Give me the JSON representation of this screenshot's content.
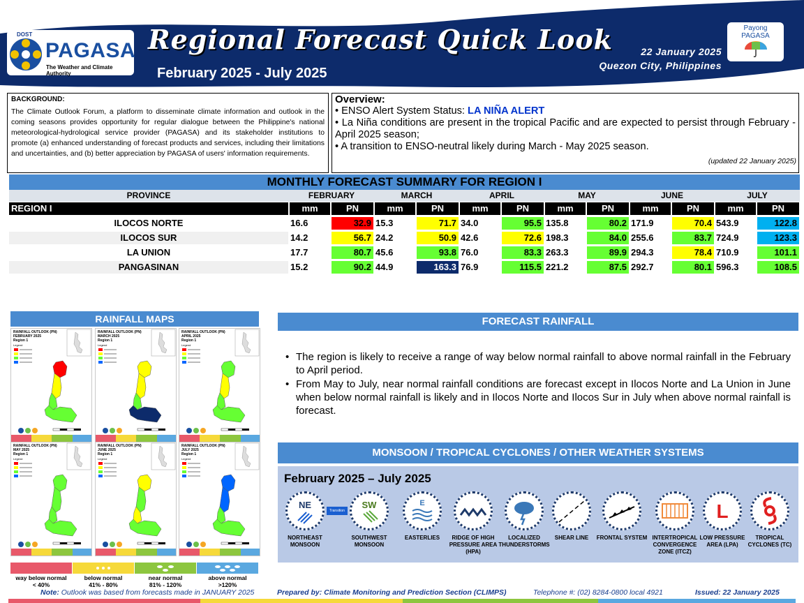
{
  "header": {
    "agency_short": "DOST",
    "agency_name": "PAGASA",
    "agency_tagline": "The Weather and Climate Authority",
    "title": "Regional Forecast Quick Look",
    "period": "February 2025 - July 2025",
    "date": "22 January 2025",
    "place": "Quezon City, Philippines",
    "partner_line1": "Payong",
    "partner_line2": "PAGASA"
  },
  "background": {
    "heading": "BACKGROUND:",
    "text": "The Climate Outlook Forum, a platform to disseminate climate information and outlook in the coming seasons provides opportunity for regular dialogue between the Philippine's national meteorological-hydrological service provider (PAGASA) and its stakeholder institutions to promote (a) enhanced understanding of forecast products and services, including their limitations and uncertainties, and (b) better appreciation by PAGASA of users' information requirements."
  },
  "overview": {
    "heading": "Overview:",
    "status_label": "ENSO Alert System Status:",
    "status_value": "LA NIÑA ALERT",
    "bullet2": "La Niña conditions are present in the tropical Pacific and are expected to persist through February - April 2025 season;",
    "bullet3": "A transition to ENSO-neutral likely during March - May 2025 season.",
    "updated": "(updated 22 January 2025)"
  },
  "summary": {
    "title": "MONTHLY FORECAST SUMMARY FOR REGION I",
    "province_header": "PROVINCE",
    "region_label": "REGION I",
    "mm_label": "mm",
    "pn_label": "PN",
    "months": [
      "FEBRUARY",
      "MARCH",
      "APRIL",
      "MAY",
      "JUNE",
      "JULY"
    ],
    "colors": {
      "way_below": "#ff0000",
      "below": "#ffff00",
      "near": "#66ff33",
      "above": "#00b0f0",
      "way_above": "#0d2b6b"
    },
    "rows": [
      {
        "province": "ILOCOS NORTE",
        "mm": [
          "16.6",
          "15.3",
          "34.0",
          "135.8",
          "171.9",
          "543.9"
        ],
        "pn": [
          "32.9",
          "71.7",
          "95.5",
          "80.2",
          "70.4",
          "122.8"
        ],
        "cat": [
          "way_below",
          "below",
          "near",
          "near",
          "below",
          "above"
        ]
      },
      {
        "province": "ILOCOS SUR",
        "mm": [
          "14.2",
          "24.2",
          "42.6",
          "198.3",
          "255.6",
          "724.9"
        ],
        "pn": [
          "56.7",
          "50.9",
          "72.6",
          "84.0",
          "83.7",
          "123.3"
        ],
        "cat": [
          "below",
          "below",
          "below",
          "near",
          "near",
          "above"
        ]
      },
      {
        "province": "LA UNION",
        "mm": [
          "17.7",
          "45.6",
          "76.0",
          "263.3",
          "294.3",
          "710.9"
        ],
        "pn": [
          "80.7",
          "93.8",
          "83.3",
          "89.9",
          "78.4",
          "101.1"
        ],
        "cat": [
          "near",
          "near",
          "near",
          "near",
          "below",
          "near"
        ]
      },
      {
        "province": "PANGASINAN",
        "mm": [
          "15.2",
          "44.9",
          "76.9",
          "221.2",
          "292.7",
          "596.3"
        ],
        "pn": [
          "90.2",
          "163.3",
          "115.5",
          "87.5",
          "80.1",
          "108.5"
        ],
        "cat": [
          "near",
          "way_above",
          "near",
          "near",
          "near",
          "near"
        ]
      }
    ]
  },
  "maps": {
    "title": "RAINFALL MAPS",
    "panels": [
      {
        "title": "RAINFALL OUTLOOK (PN)",
        "month": "FEBRUARY 2025",
        "region": "Region 1"
      },
      {
        "title": "RAINFALL OUTLOOK (PN)",
        "month": "MARCH 2025",
        "region": "Region 1"
      },
      {
        "title": "RAINFALL OUTLOOK (PN)",
        "month": "APRIL 2025",
        "region": "Region 1"
      },
      {
        "title": "RAINFALL OUTLOOK (PN)",
        "month": "MAY 2025",
        "region": "Region 1"
      },
      {
        "title": "RAINFALL OUTLOOK (PN)",
        "month": "JUNE 2025",
        "region": "Region 1"
      },
      {
        "title": "RAINFALL OUTLOOK (PN)",
        "month": "JULY 2025",
        "region": "Region 1"
      }
    ],
    "legend_word": "Legend",
    "legend": [
      {
        "label": "way below normal",
        "range": "< 40%",
        "color": "#e8596a"
      },
      {
        "label": "below normal",
        "range": "41% - 80%",
        "color": "#f6d93a"
      },
      {
        "label": "near normal",
        "range": "81% - 120%",
        "color": "#8dc63f"
      },
      {
        "label": "above normal",
        "range": ">120%",
        "color": "#5aa8e0"
      }
    ]
  },
  "forecast": {
    "title": "FORECAST RAINFALL",
    "bullets": [
      "The region is likely to receive a range of way below normal rainfall to above normal rainfall in the February to April period.",
      "From May to July, near normal rainfall conditions are forecast except in Ilocos Norte and La Union in June when below normal rainfall is likely and in Ilocos Norte and Ilocos Sur in July when above normal rainfall is forecast."
    ]
  },
  "systems": {
    "title": "MONSOON / TROPICAL CYCLONES / OTHER WEATHER SYSTEMS",
    "period": "February 2025 – July 2025",
    "transition_label": "Transition",
    "items": [
      {
        "icon": "northeast-monsoon-icon",
        "glyph": "NE",
        "label": "NORTHEAST MONSOON"
      },
      {
        "icon": "southwest-monsoon-icon",
        "glyph": "SW",
        "label": "SOUTHWEST MONSOON"
      },
      {
        "icon": "easterlies-icon",
        "glyph": "E",
        "label": "EASTERLIES"
      },
      {
        "icon": "high-pressure-ridge-icon",
        "glyph": "",
        "label": "RIDGE OF HIGH PRESSURE AREA (HPA)"
      },
      {
        "icon": "thunderstorm-icon",
        "glyph": "",
        "label": "LOCALIZED THUNDERSTORMS"
      },
      {
        "icon": "shear-line-icon",
        "glyph": "",
        "label": "SHEAR LINE"
      },
      {
        "icon": "frontal-system-icon",
        "glyph": "",
        "label": "FRONTAL SYSTEM"
      },
      {
        "icon": "itcz-icon",
        "glyph": "",
        "label": "INTERTROPICAL CONVERGENCE ZONE (ITCZ)"
      },
      {
        "icon": "low-pressure-icon",
        "glyph": "L",
        "label": "LOW PRESSURE AREA (LPA)"
      },
      {
        "icon": "tropical-cyclone-icon",
        "glyph": "",
        "label": "TROPICAL CYCLONES (TC)"
      }
    ]
  },
  "footer": {
    "note_label": "Note:",
    "note_text": "Outlook was based from forecasts made in JANUARY 2025",
    "prepared": "Prepared by: Climate Monitoring and Prediction Section (CLIMPS)",
    "telephone": "Telephone #: (02) 8284-0800 local 4921",
    "issued": "Issued: 22 January 2025"
  },
  "brand_colors": {
    "navy": "#0d2b6b",
    "header_blue": "#4a8bd0",
    "panel_light": "#b9c9e6"
  }
}
